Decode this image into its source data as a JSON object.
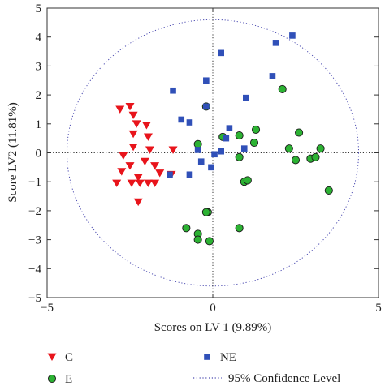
{
  "chart_data": {
    "type": "scatter",
    "xlabel": "Scores on LV 1 (9.89%)",
    "ylabel": "Score LV2 (11.81%)",
    "xlim": [
      -5,
      5
    ],
    "ylim": [
      -5,
      5
    ],
    "x_ticks": [
      "−5",
      "0",
      "5"
    ],
    "y_ticks": [
      "−5",
      "−4",
      "−3",
      "−2",
      "−1",
      "0",
      "1",
      "2",
      "3",
      "4",
      "5"
    ],
    "grid": false,
    "reference_lines": {
      "x": 0,
      "y": 0,
      "style": "dotted"
    },
    "confidence_ellipse": {
      "cx": 0,
      "cy": 0,
      "rx": 4.4,
      "ry": 4.6,
      "label": "95% Confidence Level",
      "color": "#4a4ab0"
    },
    "legend_position": "bottom",
    "series": [
      {
        "name": "C",
        "marker": "triangle-down",
        "color": "#e8141b",
        "points": [
          [
            -2.8,
            1.5
          ],
          [
            -2.5,
            1.6
          ],
          [
            -2.4,
            1.3
          ],
          [
            -2.3,
            1.0
          ],
          [
            -2.0,
            0.95
          ],
          [
            -2.4,
            0.65
          ],
          [
            -1.95,
            0.55
          ],
          [
            -2.4,
            0.2
          ],
          [
            -1.9,
            0.1
          ],
          [
            -1.2,
            0.1
          ],
          [
            -2.7,
            -0.1
          ],
          [
            -2.5,
            -0.45
          ],
          [
            -2.05,
            -0.3
          ],
          [
            -1.75,
            -0.45
          ],
          [
            -2.75,
            -0.65
          ],
          [
            -2.25,
            -0.85
          ],
          [
            -1.6,
            -0.7
          ],
          [
            -1.25,
            -0.75
          ],
          [
            -2.9,
            -1.05
          ],
          [
            -2.45,
            -1.05
          ],
          [
            -2.2,
            -1.05
          ],
          [
            -1.95,
            -1.05
          ],
          [
            -1.75,
            -1.05
          ],
          [
            -2.25,
            -1.7
          ]
        ]
      },
      {
        "name": "E",
        "marker": "circle",
        "color": "#2cb233",
        "points": [
          [
            2.1,
            2.2
          ],
          [
            -0.2,
            1.6
          ],
          [
            1.3,
            0.8
          ],
          [
            2.6,
            0.7
          ],
          [
            0.3,
            0.55
          ],
          [
            0.8,
            0.6
          ],
          [
            1.25,
            0.35
          ],
          [
            -0.45,
            0.3
          ],
          [
            2.3,
            0.15
          ],
          [
            3.25,
            0.15
          ],
          [
            0.8,
            -0.15
          ],
          [
            2.5,
            -0.25
          ],
          [
            2.95,
            -0.2
          ],
          [
            3.1,
            -0.15
          ],
          [
            0.95,
            -1.0
          ],
          [
            1.05,
            -0.95
          ],
          [
            3.5,
            -1.3
          ],
          [
            -0.15,
            -2.05
          ],
          [
            -0.2,
            -2.05
          ],
          [
            -0.8,
            -2.6
          ],
          [
            0.8,
            -2.6
          ],
          [
            -0.45,
            -2.8
          ],
          [
            -0.45,
            -3.0
          ],
          [
            -0.1,
            -3.05
          ]
        ]
      },
      {
        "name": "NE",
        "marker": "square",
        "color": "#3050b8",
        "points": [
          [
            2.4,
            4.05
          ],
          [
            1.9,
            3.8
          ],
          [
            0.25,
            3.45
          ],
          [
            1.8,
            2.65
          ],
          [
            -0.2,
            2.5
          ],
          [
            -1.2,
            2.15
          ],
          [
            1.0,
            1.9
          ],
          [
            -0.2,
            1.6
          ],
          [
            -0.95,
            1.15
          ],
          [
            -0.7,
            1.05
          ],
          [
            0.5,
            0.85
          ],
          [
            0.4,
            0.5
          ],
          [
            -0.45,
            0.1
          ],
          [
            0.25,
            0.05
          ],
          [
            0.05,
            -0.05
          ],
          [
            0.95,
            0.15
          ],
          [
            -0.35,
            -0.3
          ],
          [
            -0.05,
            -0.5
          ],
          [
            -1.3,
            -0.75
          ],
          [
            -0.7,
            -0.75
          ]
        ]
      }
    ]
  }
}
